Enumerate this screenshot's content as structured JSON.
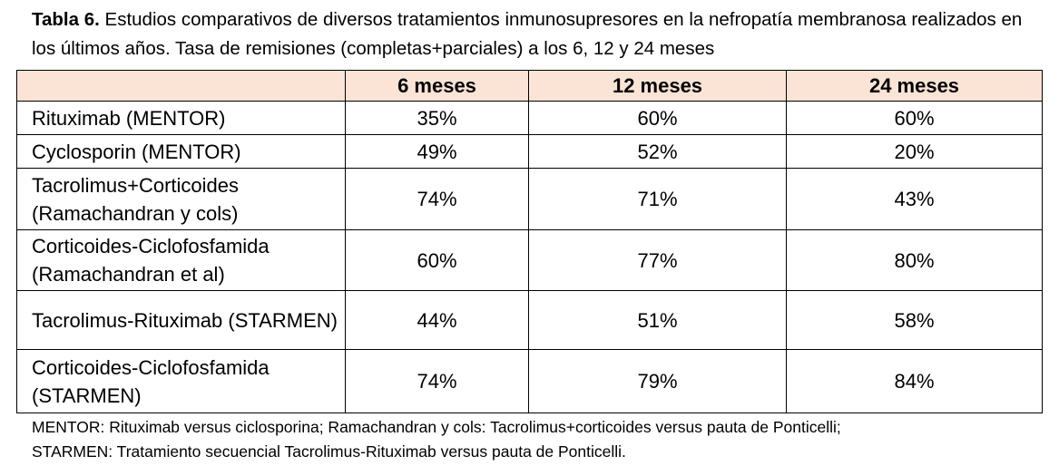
{
  "caption": {
    "label": "Tabla 6.",
    "text": "Estudios comparativos de diversos tratamientos inmunosupresores en la nefropatía membranosa realizados en los últimos años. Tasa de remisiones (completas+parciales) a los 6, 12 y 24 meses"
  },
  "table": {
    "header": [
      "6 meses",
      "12 meses",
      "24 meses"
    ],
    "rows": [
      {
        "label": "Rituximab (MENTOR)",
        "cells": [
          "35%",
          "60%",
          "60%"
        ]
      },
      {
        "label": "Cyclosporin (MENTOR)",
        "cells": [
          "49%",
          "52%",
          "20%"
        ]
      },
      {
        "label": "Tacrolimus+Corticoides (Ramachandran y cols)",
        "cells": [
          "74%",
          "71%",
          "43%"
        ]
      },
      {
        "label": "Corticoides-Ciclofosfamida (Ramachandran et al)",
        "cells": [
          "60%",
          "77%",
          "80%"
        ]
      },
      {
        "label": "Tacrolimus-Rituximab (STARMEN)",
        "cells": [
          "44%",
          "51%",
          "58%"
        ]
      },
      {
        "label": "Corticoides-Ciclofosfamida (STARMEN)",
        "cells": [
          "74%",
          "79%",
          "84%"
        ]
      }
    ]
  },
  "footnote": [
    "MENTOR: Rituximab versus ciclosporina; Ramachandran y cols: Tacrolimus+corticoides versus pauta de Ponticelli;",
    "STARMEN: Tratamiento secuencial Tacrolimus-Rituximab versus pauta de Ponticelli."
  ]
}
